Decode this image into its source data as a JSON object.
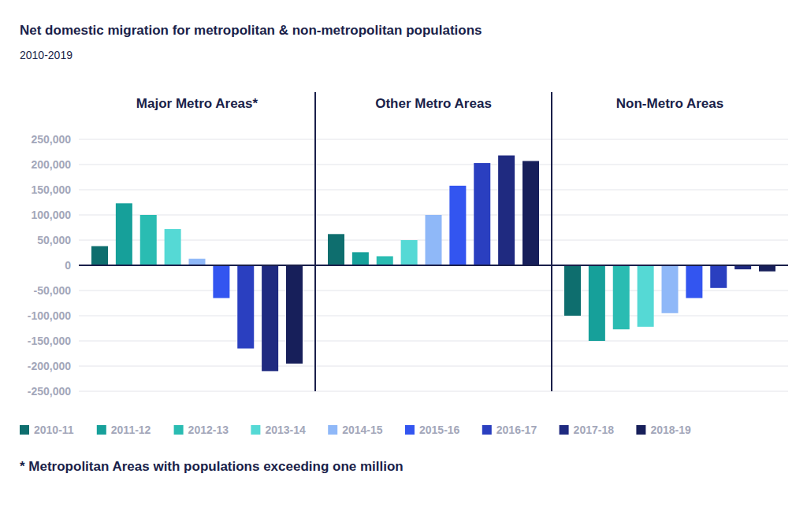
{
  "chart_data": {
    "type": "bar",
    "title": "Net domestic migration for metropolitan & non-metropolitan populations",
    "subtitle": "2010-2019",
    "categories": [
      "Major Metro Areas*",
      "Other Metro Areas",
      "Non-Metro Areas"
    ],
    "series": [
      {
        "name": "2010-11",
        "color": "#0e6e6e",
        "values": [
          38000,
          62000,
          -100000
        ]
      },
      {
        "name": "2011-12",
        "color": "#16a09a",
        "values": [
          123000,
          26000,
          -150000
        ]
      },
      {
        "name": "2012-13",
        "color": "#2abcb2",
        "values": [
          100000,
          18000,
          -127000
        ]
      },
      {
        "name": "2013-14",
        "color": "#55d9d5",
        "values": [
          72000,
          50000,
          -122000
        ]
      },
      {
        "name": "2014-15",
        "color": "#8fb8f8",
        "values": [
          13000,
          100000,
          -95000
        ]
      },
      {
        "name": "2015-16",
        "color": "#3355f0",
        "values": [
          -65000,
          158000,
          -65000
        ]
      },
      {
        "name": "2016-17",
        "color": "#2a3fc0",
        "values": [
          -165000,
          203000,
          -45000
        ]
      },
      {
        "name": "2017-18",
        "color": "#1f2a80",
        "values": [
          -210000,
          218000,
          -8000
        ]
      },
      {
        "name": "2018-19",
        "color": "#171f5a",
        "values": [
          -195000,
          207000,
          -12000
        ]
      }
    ],
    "ylim": [
      -250000,
      250000
    ],
    "yticks": [
      {
        "value": 250000,
        "label": "250,000"
      },
      {
        "value": 200000,
        "label": "200,000"
      },
      {
        "value": 150000,
        "label": "150,000"
      },
      {
        "value": 100000,
        "label": "100,000"
      },
      {
        "value": 50000,
        "label": "50,000"
      },
      0,
      {
        "value": -50000,
        "label": "-50,000"
      },
      {
        "value": -100000,
        "label": "-100,000"
      },
      {
        "value": -150000,
        "label": "-150,000"
      },
      {
        "value": -200000,
        "label": "-200,000"
      },
      {
        "value": -250000,
        "label": "-250,000"
      }
    ],
    "grid": true,
    "legend": "bottom",
    "annotations": [
      "* Metropolitan Areas with populations exceeding one million"
    ]
  }
}
